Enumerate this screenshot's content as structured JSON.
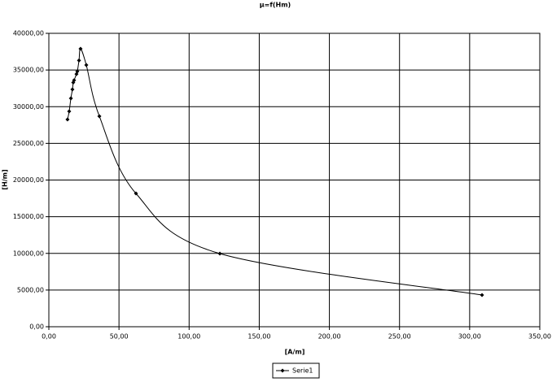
{
  "chart_data": {
    "type": "scatter",
    "title": "μ=f(Hm)",
    "x_label": "[A/m]",
    "y_label": "[H/m]",
    "series": [
      {
        "name": "Serie1",
        "color": "#000000",
        "x": [
          13.3,
          14.5,
          15.7,
          16.8,
          17.4,
          18.0,
          19.7,
          20.3,
          21.5,
          22.6,
          26.7,
          36.0,
          62.1,
          121.9,
          308.8
        ],
        "values": [
          28250,
          29360,
          31130,
          32350,
          33300,
          33600,
          34450,
          34800,
          36300,
          37900,
          35680,
          28700,
          18170,
          9970,
          4320
        ]
      }
    ],
    "xlim": [
      0,
      350
    ],
    "xticks": [
      {
        "value": 0,
        "label": "0,00"
      },
      {
        "value": 50,
        "label": "50,00"
      },
      {
        "value": 100,
        "label": "100,00"
      },
      {
        "value": 150,
        "label": "150,00"
      },
      {
        "value": 200,
        "label": "200,00"
      },
      {
        "value": 250,
        "label": "250,00"
      },
      {
        "value": 300,
        "label": "300,00"
      },
      {
        "value": 350,
        "label": "350,00"
      }
    ],
    "ylim": [
      0,
      40000
    ],
    "yticks": [
      {
        "value": 0,
        "label": "0,00"
      },
      {
        "value": 5000,
        "label": "5000,00"
      },
      {
        "value": 10000,
        "label": "10000,00"
      },
      {
        "value": 15000,
        "label": "15000,00"
      },
      {
        "value": 20000,
        "label": "20000,00"
      },
      {
        "value": 25000,
        "label": "25000,00"
      },
      {
        "value": 30000,
        "label": "30000,00"
      },
      {
        "value": 35000,
        "label": "35000,00"
      },
      {
        "value": 40000,
        "label": "40000,00"
      }
    ],
    "grid": true,
    "smooth": true,
    "legend": "bottom"
  }
}
